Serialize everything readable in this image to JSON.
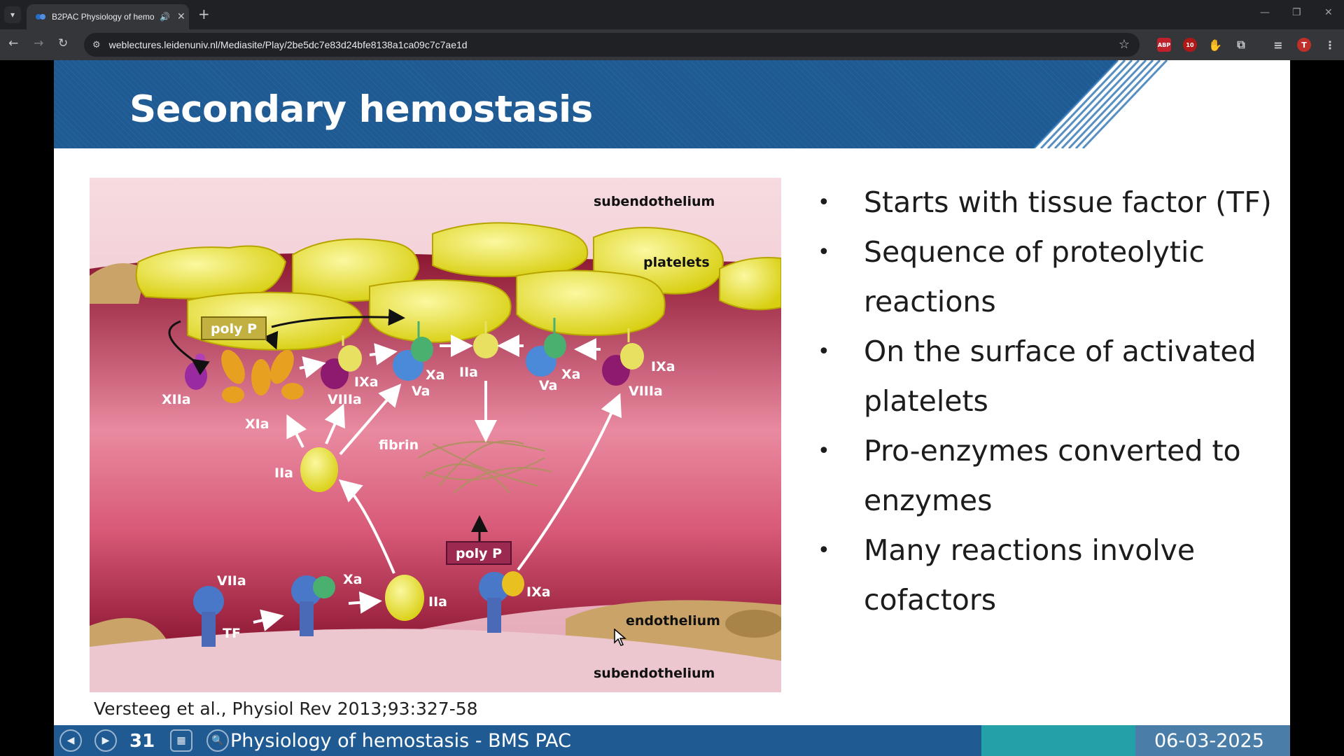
{
  "browser": {
    "tab_title": "B2PAC Physiology of hemo",
    "url": "weblectures.leidenuniv.nl/Mediasite/Play/2be5dc7e83d24bfe8138a1ca09c7c7ae1d",
    "extensions": [
      "ABP",
      "10"
    ],
    "profile_initial": "T"
  },
  "slide": {
    "title": "Secondary hemostasis",
    "bullets": [
      "Starts with tissue factor (TF)",
      "Sequence of proteolytic reactions",
      "On the surface of activated platelets",
      "Pro-enzymes converted to enzymes",
      "Many reactions involve cofactors"
    ],
    "citation": "Versteeg et al., Physiol Rev 2013;93:327-58",
    "figure_labels": {
      "subendothelium_top": "subendothelium",
      "platelets": "platelets",
      "polyp_top": "poly P",
      "xiia": "XIIa",
      "xia": "XIa",
      "ixa_left": "IXa",
      "viiia_left": "VIIIa",
      "xa_left": "Xa",
      "va_left": "Va",
      "iia_top": "IIa",
      "va_right": "Va",
      "xa_right": "Xa",
      "ixa_right": "IXa",
      "viiia_right": "VIIIa",
      "fibrin": "fibrin",
      "iia_mid": "IIa",
      "polyp_bottom": "poly P",
      "viia": "VIIa",
      "tf": "TF",
      "xa_bottom": "Xa",
      "iia_bottom": "IIa",
      "ixa_bottom": "IXa",
      "endothelium": "endothelium",
      "subendothelium_bottom": "subendothelium"
    }
  },
  "footer": {
    "slide_number": "31",
    "title": "Physiology of hemostasis - BMS PAC",
    "date": "06-03-2025"
  },
  "colors": {
    "banner": "#1f5a93",
    "footer_teal": "#23a0a8",
    "platelet_yellow": "#e8e020",
    "blood_red": "#a8203c"
  }
}
